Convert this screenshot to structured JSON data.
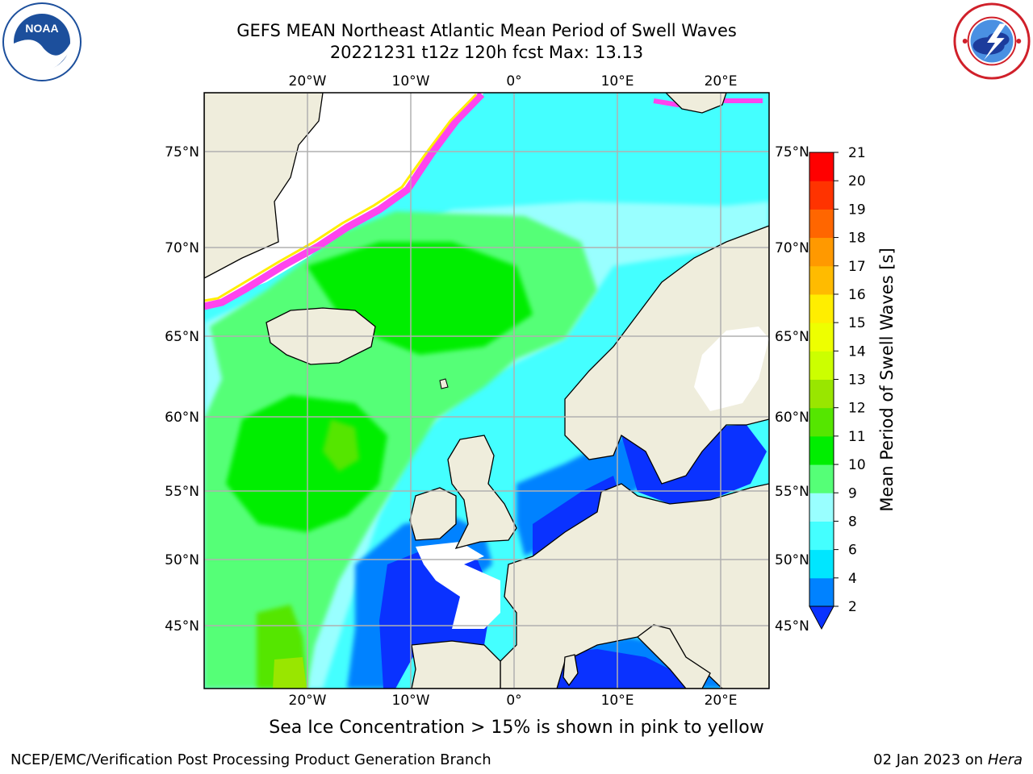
{
  "title": {
    "line1": "GEFS MEAN Northeast Atlantic Mean Period of Swell Waves",
    "line2": "20221231 t12z 120h fcst   Max: 13.13"
  },
  "map": {
    "lon_labels_top": [
      "20°W",
      "10°W",
      "0°",
      "10°E",
      "20°E"
    ],
    "lon_labels_bottom": [
      "20°W",
      "10°W",
      "0°",
      "10°E",
      "20°E"
    ],
    "lat_labels_left": [
      "75°N",
      "70°N",
      "65°N",
      "60°N",
      "55°N",
      "50°N",
      "45°N"
    ],
    "lat_labels_right": [
      "75°N",
      "70°N",
      "65°N",
      "60°N",
      "55°N",
      "50°N",
      "45°N"
    ],
    "colors": {
      "land": "#efeddc",
      "coast": "#000000",
      "grid": "#b0b0b0",
      "ice": "#ff44ee"
    }
  },
  "colorbar": {
    "label": "Mean Period of Swell Waves [s]",
    "ticks": [
      "2",
      "4",
      "6",
      "8",
      "9",
      "10",
      "11",
      "12",
      "13",
      "14",
      "15",
      "16",
      "17",
      "18",
      "19",
      "20",
      "21"
    ],
    "colors": [
      "#0a32ff",
      "#0082ff",
      "#00e6ff",
      "#44ffff",
      "#99ffff",
      "#55ff77",
      "#00ee00",
      "#55e600",
      "#99e600",
      "#ccff00",
      "#eeff00",
      "#ffee00",
      "#ffbb00",
      "#ff9900",
      "#ff6600",
      "#ff3300",
      "#ff0000"
    ],
    "extend": "min"
  },
  "ice_note": "Sea Ice Concentration > 15% is shown in pink to yellow",
  "footer": {
    "left": "NCEP/EMC/Verification Post Processing Product Generation Branch",
    "right_date": "02 Jan 2023 on",
    "right_machine": "Hera"
  },
  "logos": {
    "left": "noaa-logo-icon",
    "right": "nws-logo-icon"
  }
}
